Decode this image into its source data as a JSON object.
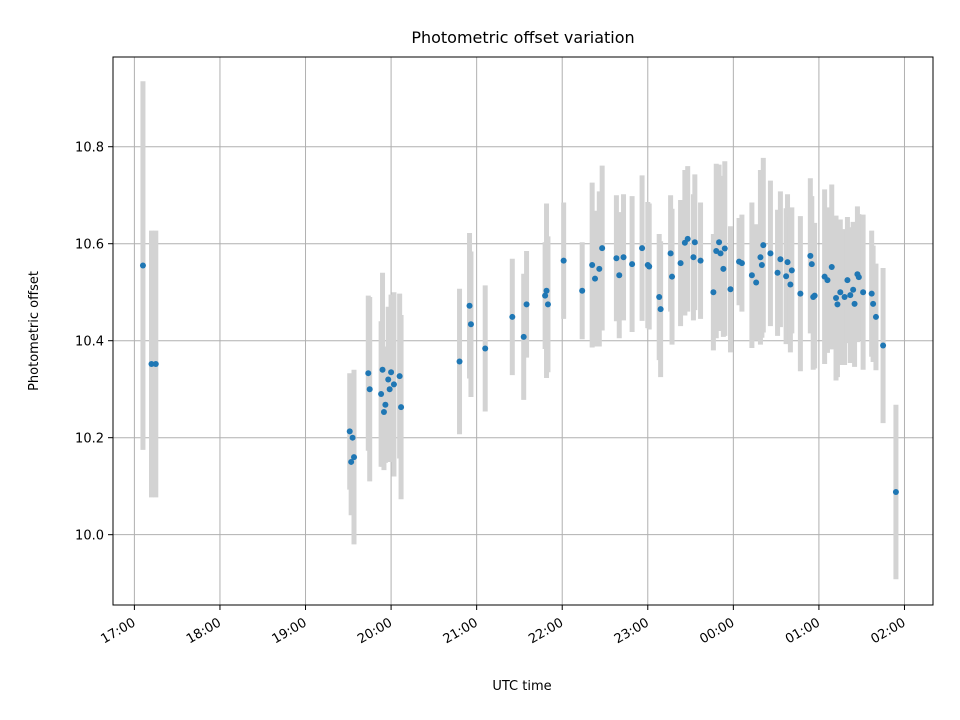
{
  "chart_data": {
    "type": "scatter",
    "title": "Photometric offset variation",
    "xlabel": "UTC time",
    "ylabel": "Photometric offset",
    "x_unit": "UTC time (HH:MM)",
    "xticks": [
      "17:00",
      "18:00",
      "19:00",
      "20:00",
      "21:00",
      "22:00",
      "23:00",
      "00:00",
      "01:00",
      "02:00"
    ],
    "xlim": [
      "16:45",
      "02:20"
    ],
    "yticks": [
      "10.0",
      "10.2",
      "10.4",
      "10.6",
      "10.8"
    ],
    "ylim": [
      9.855,
      10.985
    ],
    "grid": true,
    "legend": "none",
    "colors": {
      "marker": "#1f77b4",
      "errorbar": "#d3d3d3",
      "grid": "#b0b0b0"
    },
    "points": [
      [
        "17:06",
        10.555,
        0.38
      ],
      [
        "17:12",
        10.352,
        0.275
      ],
      [
        "17:15",
        10.352,
        0.275
      ],
      [
        "19:31",
        10.213,
        0.12
      ],
      [
        "19:32",
        10.15,
        0.11
      ],
      [
        "19:33",
        10.2,
        0.12
      ],
      [
        "19:34",
        10.16,
        0.18
      ],
      [
        "19:44",
        10.333,
        0.16
      ],
      [
        "19:45",
        10.3,
        0.19
      ],
      [
        "19:53",
        10.29,
        0.15
      ],
      [
        "19:54",
        10.34,
        0.2
      ],
      [
        "19:55",
        10.253,
        0.12
      ],
      [
        "19:56",
        10.268,
        0.12
      ],
      [
        "19:58",
        10.32,
        0.15
      ],
      [
        "19:59",
        10.3,
        0.15
      ],
      [
        "20:00",
        10.335,
        0.16
      ],
      [
        "20:02",
        10.31,
        0.19
      ],
      [
        "20:06",
        10.327,
        0.17
      ],
      [
        "20:07",
        10.263,
        0.19
      ],
      [
        "20:48",
        10.357,
        0.15
      ],
      [
        "20:55",
        10.472,
        0.15
      ],
      [
        "20:56",
        10.434,
        0.15
      ],
      [
        "21:06",
        10.384,
        0.13
      ],
      [
        "21:25",
        10.449,
        0.12
      ],
      [
        "21:33",
        10.408,
        0.13
      ],
      [
        "21:35",
        10.475,
        0.11
      ],
      [
        "21:48",
        10.493,
        0.11
      ],
      [
        "21:49",
        10.503,
        0.18
      ],
      [
        "21:50",
        10.475,
        0.14
      ],
      [
        "22:01",
        10.565,
        0.12
      ],
      [
        "22:14",
        10.503,
        0.1
      ],
      [
        "22:21",
        10.556,
        0.17
      ],
      [
        "22:23",
        10.528,
        0.14
      ],
      [
        "22:26",
        10.548,
        0.16
      ],
      [
        "22:28",
        10.591,
        0.17
      ],
      [
        "22:38",
        10.57,
        0.13
      ],
      [
        "22:40",
        10.535,
        0.13
      ],
      [
        "22:43",
        10.572,
        0.13
      ],
      [
        "22:49",
        10.558,
        0.14
      ],
      [
        "22:56",
        10.591,
        0.15
      ],
      [
        "23:00",
        10.556,
        0.13
      ],
      [
        "23:01",
        10.553,
        0.13
      ],
      [
        "23:08",
        10.49,
        0.13
      ],
      [
        "23:09",
        10.465,
        0.14
      ],
      [
        "23:16",
        10.58,
        0.12
      ],
      [
        "23:17",
        10.532,
        0.14
      ],
      [
        "23:23",
        10.56,
        0.13
      ],
      [
        "23:26",
        10.602,
        0.15
      ],
      [
        "23:28",
        10.61,
        0.15
      ],
      [
        "23:32",
        10.572,
        0.13
      ],
      [
        "23:33",
        10.603,
        0.14
      ],
      [
        "23:37",
        10.565,
        0.12
      ],
      [
        "23:46",
        10.5,
        0.12
      ],
      [
        "23:48",
        10.585,
        0.18
      ],
      [
        "23:50",
        10.603,
        0.16
      ],
      [
        "23:51",
        10.58,
        0.16
      ],
      [
        "23:53",
        10.548,
        0.14
      ],
      [
        "23:54",
        10.59,
        0.18
      ],
      [
        "23:58",
        10.506,
        0.13
      ],
      [
        "00:04",
        10.563,
        0.09
      ],
      [
        "00:06",
        10.56,
        0.1
      ],
      [
        "00:13",
        10.535,
        0.15
      ],
      [
        "00:16",
        10.52,
        0.12
      ],
      [
        "00:19",
        10.572,
        0.18
      ],
      [
        "00:20",
        10.556,
        0.15
      ],
      [
        "00:21",
        10.597,
        0.18
      ],
      [
        "00:26",
        10.58,
        0.15
      ],
      [
        "00:31",
        10.54,
        0.13
      ],
      [
        "00:33",
        10.568,
        0.14
      ],
      [
        "00:37",
        10.533,
        0.14
      ],
      [
        "00:38",
        10.562,
        0.14
      ],
      [
        "00:40",
        10.516,
        0.14
      ],
      [
        "00:41",
        10.545,
        0.13
      ],
      [
        "00:47",
        10.497,
        0.16
      ],
      [
        "00:54",
        10.575,
        0.16
      ],
      [
        "00:55",
        10.558,
        0.14
      ],
      [
        "00:56",
        10.49,
        0.15
      ],
      [
        "00:57",
        10.493,
        0.15
      ],
      [
        "01:04",
        10.532,
        0.18
      ],
      [
        "01:06",
        10.525,
        0.15
      ],
      [
        "01:09",
        10.552,
        0.17
      ],
      [
        "01:12",
        10.488,
        0.17
      ],
      [
        "01:13",
        10.475,
        0.15
      ],
      [
        "01:15",
        10.5,
        0.15
      ],
      [
        "01:18",
        10.49,
        0.14
      ],
      [
        "01:20",
        10.525,
        0.13
      ],
      [
        "01:22",
        10.494,
        0.14
      ],
      [
        "01:24",
        10.505,
        0.14
      ],
      [
        "01:25",
        10.476,
        0.13
      ],
      [
        "01:27",
        10.537,
        0.14
      ],
      [
        "01:28",
        10.531,
        0.13
      ],
      [
        "01:31",
        10.5,
        0.16
      ],
      [
        "01:37",
        10.497,
        0.13
      ],
      [
        "01:38",
        10.476,
        0.12
      ],
      [
        "01:40",
        10.449,
        0.11
      ],
      [
        "01:45",
        10.39,
        0.16
      ],
      [
        "01:54",
        10.088,
        0.18
      ]
    ]
  }
}
